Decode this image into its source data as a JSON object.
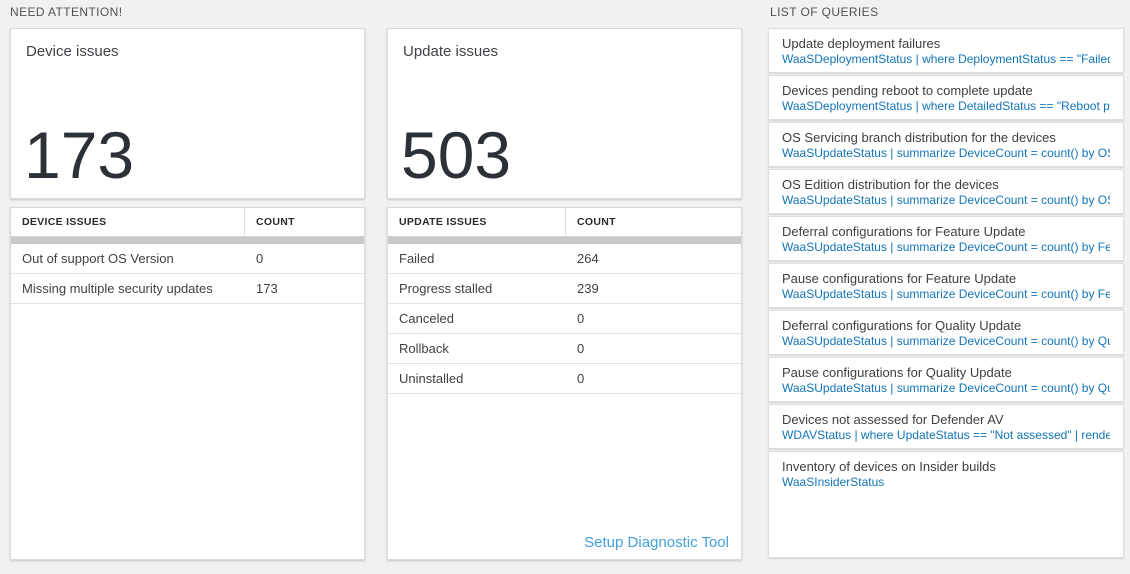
{
  "sections": {
    "need_attention": "NEED ATTENTION!",
    "list_of_queries": "LIST OF QUERIES"
  },
  "device_card": {
    "title": "Device issues",
    "count": "173"
  },
  "update_card": {
    "title": "Update issues",
    "count": "503"
  },
  "device_table": {
    "col1": "DEVICE ISSUES",
    "col2": "COUNT",
    "rows": [
      {
        "label": "Out of support OS Version",
        "count": "0"
      },
      {
        "label": "Missing multiple security updates",
        "count": "173"
      }
    ]
  },
  "update_table": {
    "col1": "UPDATE ISSUES",
    "col2": "COUNT",
    "rows": [
      {
        "label": "Failed",
        "count": "264"
      },
      {
        "label": "Progress stalled",
        "count": "239"
      },
      {
        "label": "Canceled",
        "count": "0"
      },
      {
        "label": "Rollback",
        "count": "0"
      },
      {
        "label": "Uninstalled",
        "count": "0"
      }
    ],
    "footer_link": "Setup Diagnostic Tool"
  },
  "queries": {
    "items": [
      {
        "title": "Update deployment failures",
        "query": "WaaSDeploymentStatus | where DeploymentStatus == \"Failed\" |..."
      },
      {
        "title": "Devices pending reboot to complete update",
        "query": "WaaSDeploymentStatus | where DetailedStatus == \"Reboot pend..."
      },
      {
        "title": "OS Servicing branch distribution for the devices",
        "query": "WaaSUpdateStatus | summarize DeviceCount = count() by OSSer..."
      },
      {
        "title": "OS Edition distribution for the devices",
        "query": "WaaSUpdateStatus | summarize DeviceCount = count() by OSEdit..."
      },
      {
        "title": "Deferral configurations for Feature Update",
        "query": "WaaSUpdateStatus | summarize DeviceCount = count() by Featur..."
      },
      {
        "title": "Pause configurations for Feature Update",
        "query": "WaaSUpdateStatus | summarize DeviceCount = count() by Featur..."
      },
      {
        "title": "Deferral configurations for Quality Update",
        "query": "WaaSUpdateStatus | summarize DeviceCount = count() by Qualit..."
      },
      {
        "title": "Pause configurations for Quality Update",
        "query": "WaaSUpdateStatus | summarize DeviceCount = count() by Qualit..."
      },
      {
        "title": "Devices not assessed for Defender AV",
        "query": "WDAVStatus | where UpdateStatus == \"Not assessed\" | render ta..."
      },
      {
        "title": "Inventory of devices on Insider builds",
        "query": "WaaSInsiderStatus"
      }
    ]
  },
  "colors": {
    "page_background": "#f1f1f1",
    "panel_background": "#ffffff",
    "query_link_blue": "#1274b8",
    "setup_link_blue": "#42a0dc",
    "big_number": "#2b3137",
    "scrollbar_gray": "#c9c9c9"
  }
}
